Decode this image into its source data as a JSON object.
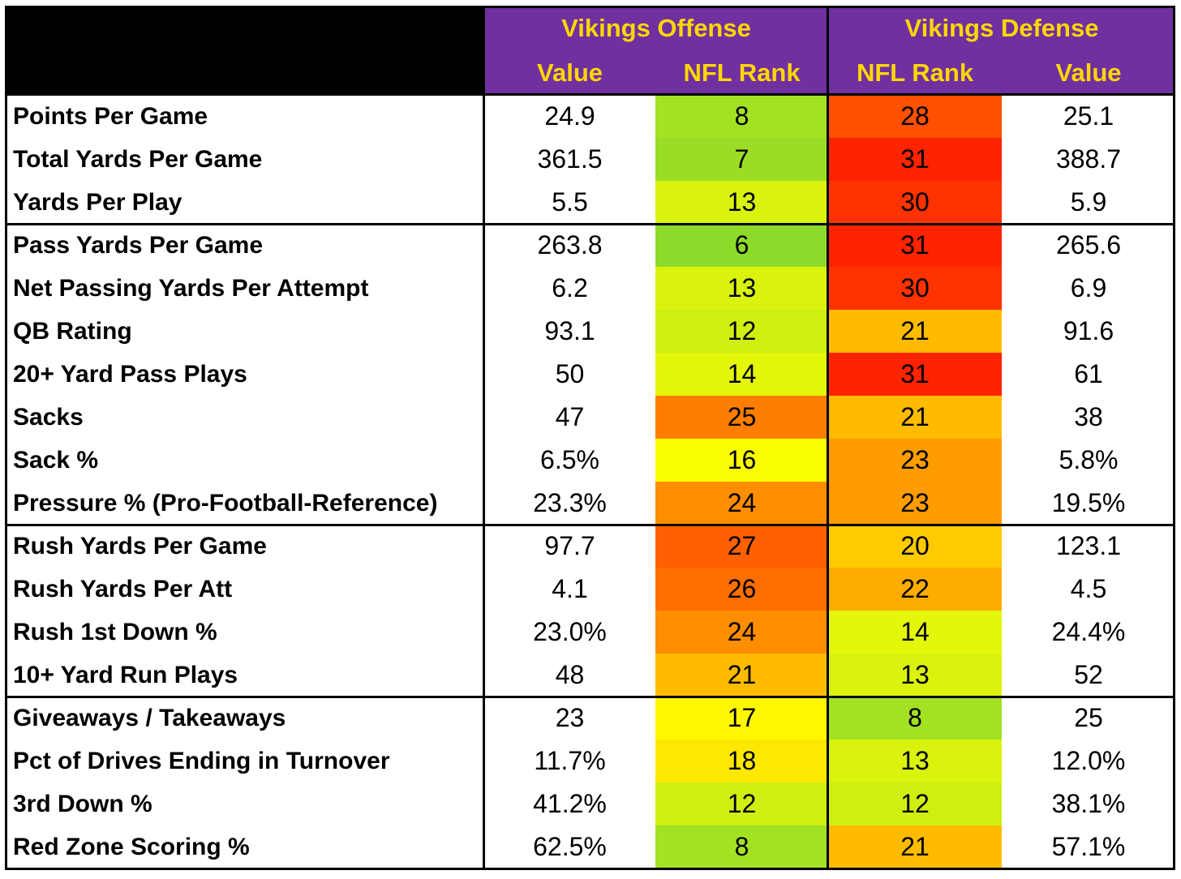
{
  "header": {
    "offense_title": "Vikings Offense",
    "defense_title": "Vikings Defense",
    "offense_value_label": "Value",
    "offense_rank_label": "NFL Rank",
    "defense_rank_label": "NFL Rank",
    "defense_value_label": "Value"
  },
  "colors": {
    "header_bg": "#7030A0",
    "header_text": "#FFD700",
    "corner_bg": "#000000"
  },
  "rows": [
    {
      "label": "Points Per Game",
      "off_value": "24.9",
      "off_rank": "8",
      "def_rank": "28",
      "def_value": "25.1"
    },
    {
      "label": "Total Yards Per Game",
      "off_value": "361.5",
      "off_rank": "7",
      "def_rank": "31",
      "def_value": "388.7"
    },
    {
      "label": "Yards Per Play",
      "off_value": "5.5",
      "off_rank": "13",
      "def_rank": "30",
      "def_value": "5.9"
    },
    {
      "label": "Pass Yards Per Game",
      "off_value": "263.8",
      "off_rank": "6",
      "def_rank": "31",
      "def_value": "265.6"
    },
    {
      "label": "Net Passing Yards Per Attempt",
      "off_value": "6.2",
      "off_rank": "13",
      "def_rank": "30",
      "def_value": "6.9"
    },
    {
      "label": "QB Rating",
      "off_value": "93.1",
      "off_rank": "12",
      "def_rank": "21",
      "def_value": "91.6"
    },
    {
      "label": "20+ Yard Pass Plays",
      "off_value": "50",
      "off_rank": "14",
      "def_rank": "31",
      "def_value": "61"
    },
    {
      "label": "Sacks",
      "off_value": "47",
      "off_rank": "25",
      "def_rank": "21",
      "def_value": "38"
    },
    {
      "label": "Sack %",
      "off_value": "6.5%",
      "off_rank": "16",
      "def_rank": "23",
      "def_value": "5.8%"
    },
    {
      "label": "Pressure % (Pro-Football-Reference)",
      "off_value": "23.3%",
      "off_rank": "24",
      "def_rank": "23",
      "def_value": "19.5%"
    },
    {
      "label": "Rush Yards Per Game",
      "off_value": "97.7",
      "off_rank": "27",
      "def_rank": "20",
      "def_value": "123.1"
    },
    {
      "label": "Rush Yards Per Att",
      "off_value": "4.1",
      "off_rank": "26",
      "def_rank": "22",
      "def_value": "4.5"
    },
    {
      "label": "Rush 1st Down %",
      "off_value": "23.0%",
      "off_rank": "24",
      "def_rank": "14",
      "def_value": "24.4%"
    },
    {
      "label": "10+ Yard Run Plays",
      "off_value": "48",
      "off_rank": "21",
      "def_rank": "13",
      "def_value": "52"
    },
    {
      "label": "Giveaways / Takeaways",
      "off_value": "23",
      "off_rank": "17",
      "def_rank": "8",
      "def_value": "25"
    },
    {
      "label": "Pct of Drives Ending in Turnover",
      "off_value": "11.7%",
      "off_rank": "18",
      "def_rank": "13",
      "def_value": "12.0%"
    },
    {
      "label": "3rd Down %",
      "off_value": "41.2%",
      "off_rank": "12",
      "def_rank": "12",
      "def_value": "38.1%"
    },
    {
      "label": "Red Zone Scoring %",
      "off_value": "62.5%",
      "off_rank": "8",
      "def_rank": "21",
      "def_value": "57.1%"
    }
  ]
}
